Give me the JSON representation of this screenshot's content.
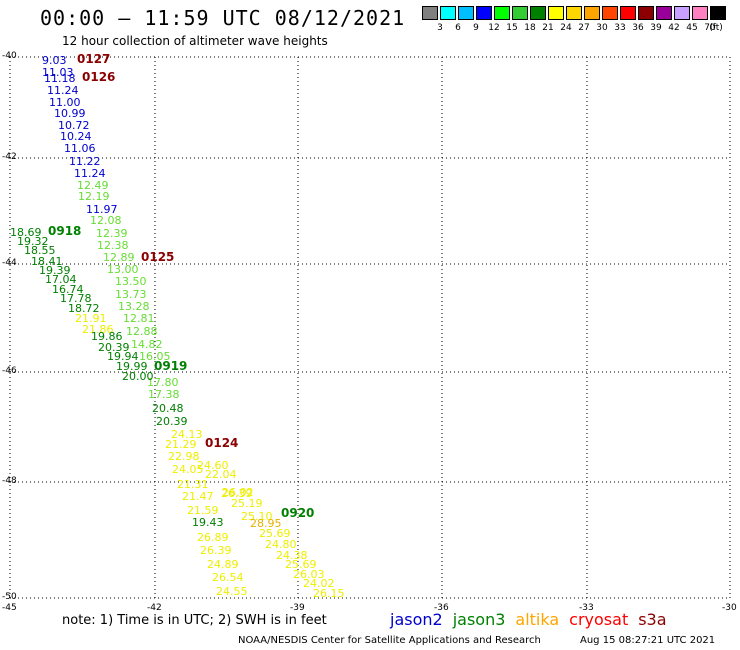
{
  "title": "00:00 – 11:59 UTC 08/12/2021",
  "subtitle": "12 hour collection of altimeter wave heights",
  "colorbar": {
    "unit": "(ft)",
    "labels": [
      "3",
      "6",
      "9",
      "12",
      "15",
      "18",
      "21",
      "24",
      "27",
      "30",
      "33",
      "36",
      "39",
      "42",
      "45",
      "70"
    ],
    "colors": [
      "#808080",
      "#00ffff",
      "#00bfff",
      "#0000ff",
      "#00ff00",
      "#33cc33",
      "#008000",
      "#ffff00",
      "#ffd700",
      "#ffa500",
      "#ff4500",
      "#ff0000",
      "#8b0000",
      "#990099",
      "#c8a0ff",
      "#ff80c0",
      "#000000"
    ]
  },
  "map": {
    "lat_labels": [
      "-40",
      "-42",
      "-44",
      "-46",
      "-48",
      "-50"
    ],
    "lon_labels": [
      "-45",
      "-42",
      "-39",
      "-36",
      "-33",
      "-30"
    ]
  },
  "track_labels": [
    {
      "text": "0127",
      "color": "#8b0000"
    },
    {
      "text": "0126",
      "color": "#8b0000"
    },
    {
      "text": "0918",
      "color": "#008000"
    },
    {
      "text": "0125",
      "color": "#8b0000"
    },
    {
      "text": "0919",
      "color": "#008000"
    },
    {
      "text": "0124",
      "color": "#8b0000"
    },
    {
      "text": "0920",
      "color": "#008000"
    }
  ],
  "points": [
    {
      "v": "9.03",
      "c": "#0000cd"
    },
    {
      "v": "11.03",
      "c": "#0000cd"
    },
    {
      "v": "11.18",
      "c": "#0000cd"
    },
    {
      "v": "11.24",
      "c": "#0000cd"
    },
    {
      "v": "11.00",
      "c": "#0000cd"
    },
    {
      "v": "10.99",
      "c": "#0000cd"
    },
    {
      "v": "10.72",
      "c": "#0000cd"
    },
    {
      "v": "10.24",
      "c": "#0000cd"
    },
    {
      "v": "11.06",
      "c": "#0000cd"
    },
    {
      "v": "11.22",
      "c": "#0000cd"
    },
    {
      "v": "11.24",
      "c": "#0000cd"
    },
    {
      "v": "12.49",
      "c": "#66dd33"
    },
    {
      "v": "12.19",
      "c": "#66dd33"
    },
    {
      "v": "11.97",
      "c": "#0000cd"
    },
    {
      "v": "12.08",
      "c": "#66dd33"
    },
    {
      "v": "12.39",
      "c": "#66dd33"
    },
    {
      "v": "12.38",
      "c": "#66dd33"
    },
    {
      "v": "12.89",
      "c": "#66dd33"
    },
    {
      "v": "13.00",
      "c": "#66dd33"
    },
    {
      "v": "13.50",
      "c": "#66dd33"
    },
    {
      "v": "13.73",
      "c": "#66dd33"
    },
    {
      "v": "13.28",
      "c": "#66dd33"
    },
    {
      "v": "12.81",
      "c": "#66dd33"
    },
    {
      "v": "12.88",
      "c": "#66dd33"
    },
    {
      "v": "14.82",
      "c": "#66dd33"
    },
    {
      "v": "16.05",
      "c": "#66dd33"
    },
    {
      "v": "17.80",
      "c": "#66dd33"
    },
    {
      "v": "17.38",
      "c": "#66dd33"
    },
    {
      "v": "18.69",
      "c": "#008000"
    },
    {
      "v": "19.32",
      "c": "#008000"
    },
    {
      "v": "18.55",
      "c": "#008000"
    },
    {
      "v": "18.41",
      "c": "#008000"
    },
    {
      "v": "19.39",
      "c": "#008000"
    },
    {
      "v": "17.04",
      "c": "#008000"
    },
    {
      "v": "16.74",
      "c": "#008000"
    },
    {
      "v": "17.78",
      "c": "#008000"
    },
    {
      "v": "18.72",
      "c": "#008000"
    },
    {
      "v": "21.91",
      "c": "#eeee00"
    },
    {
      "v": "21.86",
      "c": "#eeee00"
    },
    {
      "v": "19.86",
      "c": "#008000"
    },
    {
      "v": "20.39",
      "c": "#008000"
    },
    {
      "v": "19.94",
      "c": "#008000"
    },
    {
      "v": "19.99",
      "c": "#008000"
    },
    {
      "v": "20.00",
      "c": "#008000"
    },
    {
      "v": "20.48",
      "c": "#008000"
    },
    {
      "v": "20.39",
      "c": "#008000"
    },
    {
      "v": "24.13",
      "c": "#eeee00"
    },
    {
      "v": "21.29",
      "c": "#eeee00"
    },
    {
      "v": "22.98",
      "c": "#eeee00"
    },
    {
      "v": "24.60",
      "c": "#eeee00"
    },
    {
      "v": "24.05",
      "c": "#eeee00"
    },
    {
      "v": "22.04",
      "c": "#eeee00"
    },
    {
      "v": "21.31",
      "c": "#eeee00"
    },
    {
      "v": "26.39",
      "c": "#eeee00"
    },
    {
      "v": "21.47",
      "c": "#eeee00"
    },
    {
      "v": "21.59",
      "c": "#eeee00"
    },
    {
      "v": "19.43",
      "c": "#008000"
    },
    {
      "v": "26.02",
      "c": "#eeee00"
    },
    {
      "v": "25.19",
      "c": "#eeee00"
    },
    {
      "v": "25.10",
      "c": "#eeee00"
    },
    {
      "v": "28.95",
      "c": "#e8b000"
    },
    {
      "v": "26.89",
      "c": "#eeee00"
    },
    {
      "v": "26.39",
      "c": "#eeee00"
    },
    {
      "v": "24.89",
      "c": "#eeee00"
    },
    {
      "v": "26.54",
      "c": "#eeee00"
    },
    {
      "v": "24.55",
      "c": "#eeee00"
    },
    {
      "v": "25.69",
      "c": "#eeee00"
    },
    {
      "v": "24.80",
      "c": "#eeee00"
    },
    {
      "v": "24.38",
      "c": "#eeee00"
    },
    {
      "v": "25.69",
      "c": "#eeee00"
    },
    {
      "v": "26.03",
      "c": "#eeee00"
    },
    {
      "v": "24.02",
      "c": "#eeee00"
    },
    {
      "v": "26.15",
      "c": "#eeee00"
    }
  ],
  "note": "note: 1) Time is in UTC; 2) SWH is in feet",
  "legend": [
    {
      "text": "jason2",
      "color": "#0000cd"
    },
    {
      "text": "jason3",
      "color": "#008000"
    },
    {
      "text": "altika",
      "color": "#ffa500"
    },
    {
      "text": "cryosat",
      "color": "#ff0000"
    },
    {
      "text": "s3a",
      "color": "#8b0000"
    }
  ],
  "credit": "NOAA/NESDIS Center for Satellite Applications and Research",
  "timestamp": "Aug 15 08:27:21 UTC 2021"
}
